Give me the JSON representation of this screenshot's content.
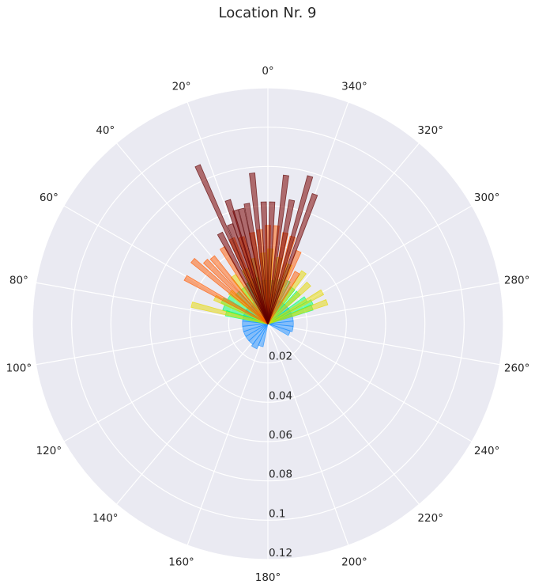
{
  "chart_data": {
    "type": "polar-bar",
    "title": "Location Nr. 9",
    "angular_direction": "counterclockwise",
    "zero_location": "top",
    "angle_ticks": [
      "0°",
      "20°",
      "40°",
      "60°",
      "80°",
      "100°",
      "120°",
      "140°",
      "160°",
      "180°",
      "200°",
      "220°",
      "240°",
      "260°",
      "280°",
      "300°",
      "320°",
      "340°"
    ],
    "radial_ticks": [
      "0.02",
      "0.04",
      "0.06",
      "0.08",
      "0.1",
      "0.12"
    ],
    "rlim": [
      0,
      0.12
    ],
    "grid": true,
    "series": [
      {
        "color": "#1e90ff",
        "bars": [
          {
            "angle": 8,
            "value": 0.012
          },
          {
            "angle": 18,
            "value": 0.013
          },
          {
            "angle": 30,
            "value": 0.013
          },
          {
            "angle": 42,
            "value": 0.012
          },
          {
            "angle": 54,
            "value": 0.013
          },
          {
            "angle": 66,
            "value": 0.013
          },
          {
            "angle": 78,
            "value": 0.013
          },
          {
            "angle": 90,
            "value": 0.013
          },
          {
            "angle": 102,
            "value": 0.013
          },
          {
            "angle": 114,
            "value": 0.013
          },
          {
            "angle": 126,
            "value": 0.013
          },
          {
            "angle": 138,
            "value": 0.013
          },
          {
            "angle": 150,
            "value": 0.014
          },
          {
            "angle": 162,
            "value": 0.012
          },
          {
            "angle": 354,
            "value": 0.012
          },
          {
            "angle": 342,
            "value": 0.012
          },
          {
            "angle": 330,
            "value": 0.013
          },
          {
            "angle": 318,
            "value": 0.013
          },
          {
            "angle": 306,
            "value": 0.013
          },
          {
            "angle": 294,
            "value": 0.013
          },
          {
            "angle": 282,
            "value": 0.013
          },
          {
            "angle": 270,
            "value": 0.013
          },
          {
            "angle": 258,
            "value": 0.013
          },
          {
            "angle": 246,
            "value": 0.012
          }
        ]
      },
      {
        "color": "#00ff66",
        "bars": [
          {
            "angle": 5,
            "value": 0.022
          },
          {
            "angle": 15,
            "value": 0.024
          },
          {
            "angle": 25,
            "value": 0.023
          },
          {
            "angle": 35,
            "value": 0.022
          },
          {
            "angle": 45,
            "value": 0.022
          },
          {
            "angle": 55,
            "value": 0.024
          },
          {
            "angle": 63,
            "value": 0.026
          },
          {
            "angle": 70,
            "value": 0.024
          },
          {
            "angle": 76,
            "value": 0.022
          },
          {
            "angle": 355,
            "value": 0.022
          },
          {
            "angle": 345,
            "value": 0.023
          },
          {
            "angle": 335,
            "value": 0.024
          },
          {
            "angle": 325,
            "value": 0.022
          },
          {
            "angle": 315,
            "value": 0.022
          },
          {
            "angle": 303,
            "value": 0.023
          },
          {
            "angle": 296,
            "value": 0.025
          },
          {
            "angle": 290,
            "value": 0.024
          }
        ]
      },
      {
        "color": "#e6d800",
        "bars": [
          {
            "angle": 4,
            "value": 0.036
          },
          {
            "angle": 358,
            "value": 0.038
          },
          {
            "angle": 13,
            "value": 0.034
          },
          {
            "angle": 23,
            "value": 0.03
          },
          {
            "angle": 36,
            "value": 0.03
          },
          {
            "angle": 50,
            "value": 0.025
          },
          {
            "angle": 64,
            "value": 0.03
          },
          {
            "angle": 76,
            "value": 0.04
          },
          {
            "angle": 350,
            "value": 0.034
          },
          {
            "angle": 340,
            "value": 0.032
          },
          {
            "angle": 325,
            "value": 0.032
          },
          {
            "angle": 314,
            "value": 0.029
          },
          {
            "angle": 300,
            "value": 0.032
          },
          {
            "angle": 290,
            "value": 0.032
          }
        ]
      },
      {
        "color": "#ff5a00",
        "bars": [
          {
            "angle": 0,
            "value": 0.05
          },
          {
            "angle": 5,
            "value": 0.048
          },
          {
            "angle": 10,
            "value": 0.047
          },
          {
            "angle": 17,
            "value": 0.046
          },
          {
            "angle": 23,
            "value": 0.047
          },
          {
            "angle": 31,
            "value": 0.045
          },
          {
            "angle": 40,
            "value": 0.044
          },
          {
            "angle": 45,
            "value": 0.045
          },
          {
            "angle": 50,
            "value": 0.05
          },
          {
            "angle": 61,
            "value": 0.048
          },
          {
            "angle": 355,
            "value": 0.05
          },
          {
            "angle": 349,
            "value": 0.047
          },
          {
            "angle": 344,
            "value": 0.046
          },
          {
            "angle": 337,
            "value": 0.04
          },
          {
            "angle": 330,
            "value": 0.03
          }
        ]
      },
      {
        "color": "#7a0000",
        "bars": [
          {
            "angle": 2,
            "value": 0.062
          },
          {
            "angle": 358,
            "value": 0.062
          },
          {
            "angle": 6,
            "value": 0.077
          },
          {
            "angle": 10,
            "value": 0.062
          },
          {
            "angle": 13,
            "value": 0.06
          },
          {
            "angle": 16,
            "value": 0.06
          },
          {
            "angle": 18,
            "value": 0.066
          },
          {
            "angle": 21,
            "value": 0.054
          },
          {
            "angle": 24,
            "value": 0.088
          },
          {
            "angle": 28,
            "value": 0.052
          },
          {
            "angle": 353,
            "value": 0.076
          },
          {
            "angle": 349,
            "value": 0.064
          },
          {
            "angle": 344,
            "value": 0.078
          },
          {
            "angle": 340,
            "value": 0.07
          }
        ]
      }
    ]
  }
}
